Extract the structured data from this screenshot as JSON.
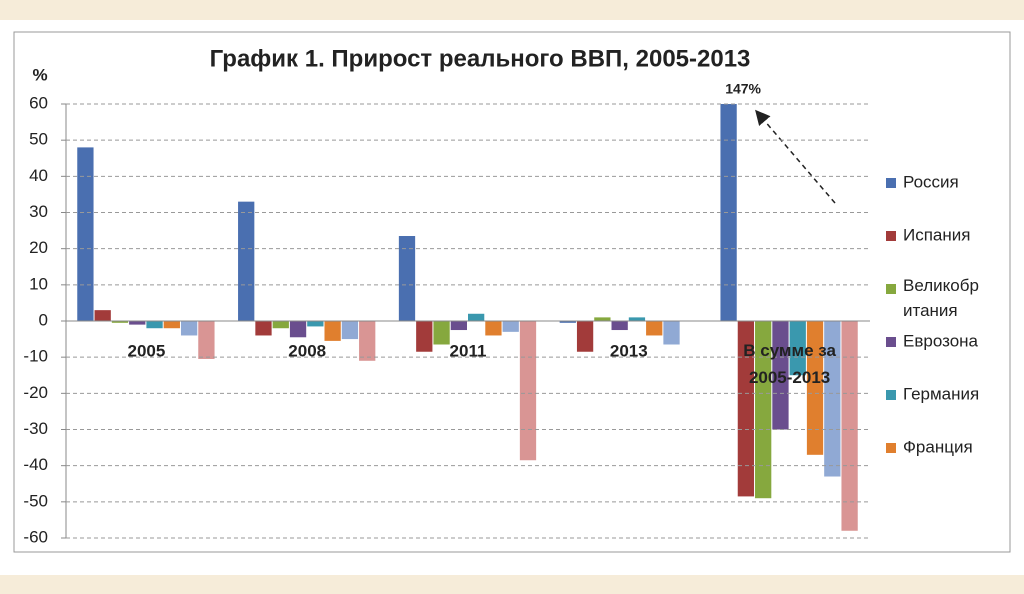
{
  "chart_data": {
    "type": "bar",
    "title": "График 1. Прирост реального ВВП, 2005-2013",
    "y_label": "%",
    "categories": [
      "2005",
      "2008",
      "2011",
      "2013",
      "В сумме за 2005-2013"
    ],
    "series": [
      {
        "name": "Россия",
        "color": "#4a6fb0",
        "values": [
          48,
          33,
          23.5,
          -0.5,
          147
        ],
        "value_labels": [
          null,
          null,
          null,
          null,
          "147%"
        ]
      },
      {
        "name": "Испания",
        "color": "#a23b3a",
        "values": [
          3,
          -4,
          -8.5,
          -8.5,
          -48.5
        ]
      },
      {
        "name": "Великобритания",
        "color": "#86a83e",
        "values": [
          -0.5,
          -2,
          -6.5,
          1,
          -49
        ]
      },
      {
        "name": "Еврозона",
        "color": "#6a4e8e",
        "values": [
          -1,
          -4.5,
          -2.5,
          -2.5,
          -30
        ]
      },
      {
        "name": "Германия",
        "color": "#3a98ae",
        "values": [
          -2,
          -1.5,
          2,
          1,
          -15
        ]
      },
      {
        "name": "Франция",
        "color": "#e07f2e",
        "values": [
          -2,
          -5.5,
          -4,
          -4,
          -37
        ]
      },
      {
        "color": "#90a9d4",
        "values": [
          -4,
          -5,
          -3,
          -6.5,
          -43
        ]
      },
      {
        "color": "#d99594",
        "values": [
          -10.5,
          -11,
          -38.5,
          0,
          -58
        ]
      }
    ],
    "ylim": [
      -60,
      60
    ],
    "yticks": [
      -60,
      -50,
      -40,
      -30,
      -20,
      -10,
      0,
      10,
      20,
      30,
      40,
      50,
      60
    ],
    "grid": true
  }
}
